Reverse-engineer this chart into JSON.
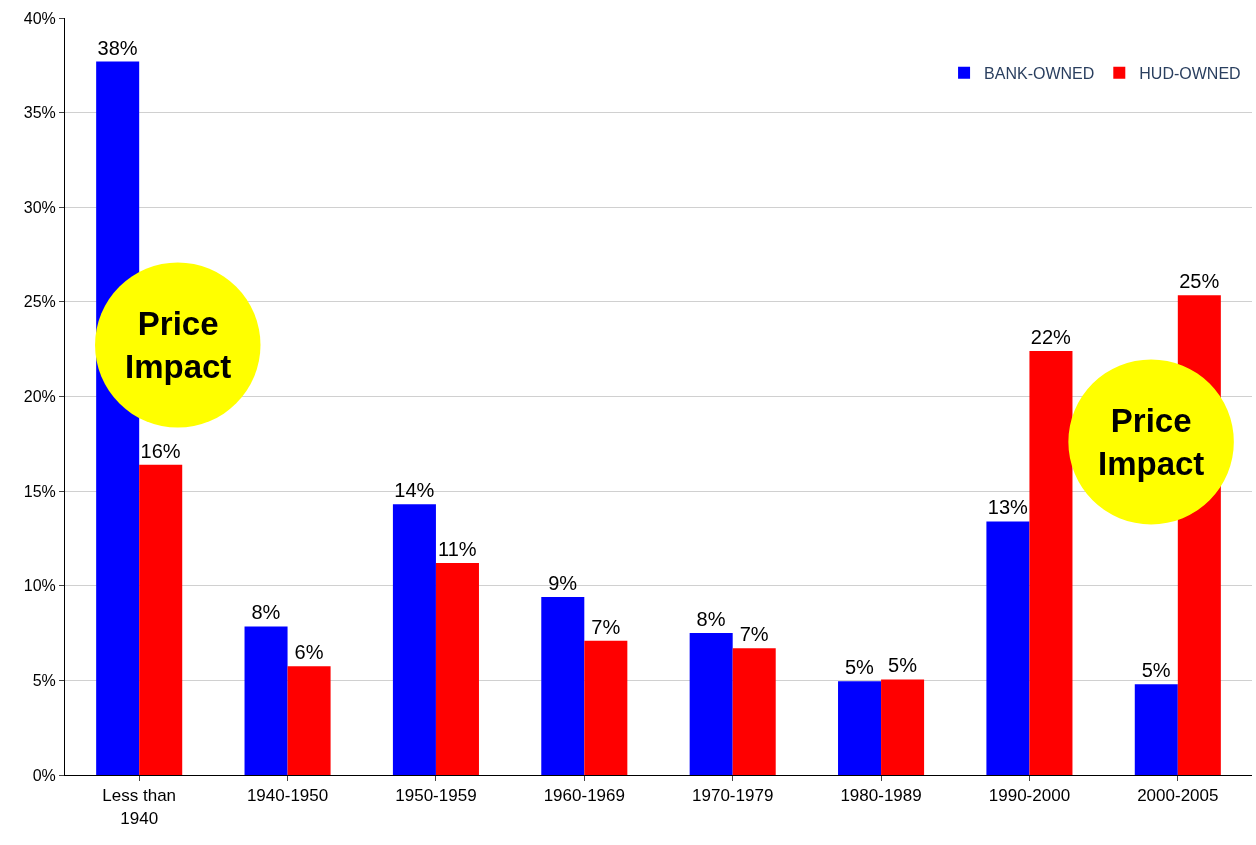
{
  "chart_data": {
    "type": "bar",
    "categories": [
      "Less than\n1940",
      "1940-1950",
      "1950-1959",
      "1960-1969",
      "1970-1979",
      "1980-1989",
      "1990-2000",
      "2000-2005"
    ],
    "series": [
      {
        "name": "BANK-OWNED",
        "color": "#0000ff",
        "values": [
          37.7,
          7.85,
          14.3,
          9.4,
          7.5,
          4.95,
          13.4,
          4.8
        ],
        "value_labels": [
          "38%",
          "8%",
          "14%",
          "9%",
          "8%",
          "5%",
          "13%",
          "5%"
        ]
      },
      {
        "name": "HUD-OWNED",
        "color": "#ff0000",
        "values": [
          16.4,
          5.75,
          11.2,
          7.1,
          6.7,
          5.05,
          22.4,
          25.35
        ],
        "value_labels": [
          "16%",
          "6%",
          "11%",
          "7%",
          "7%",
          "5%",
          "22%",
          "25%"
        ]
      }
    ],
    "ylim": [
      0,
      40
    ],
    "yticks": [
      {
        "value": 0,
        "label": "0%"
      },
      {
        "value": 5,
        "label": "5%"
      },
      {
        "value": 10,
        "label": "10%"
      },
      {
        "value": 15,
        "label": "15%"
      },
      {
        "value": 20,
        "label": "20%"
      },
      {
        "value": 25,
        "label": "25%"
      },
      {
        "value": 30,
        "label": "30%"
      },
      {
        "value": 35,
        "label": "35%"
      },
      {
        "value": 40,
        "label": "40%"
      }
    ],
    "grid": "y",
    "legend": "top right",
    "annotations": [
      "Price\nImpact",
      "Price\nImpact"
    ]
  }
}
